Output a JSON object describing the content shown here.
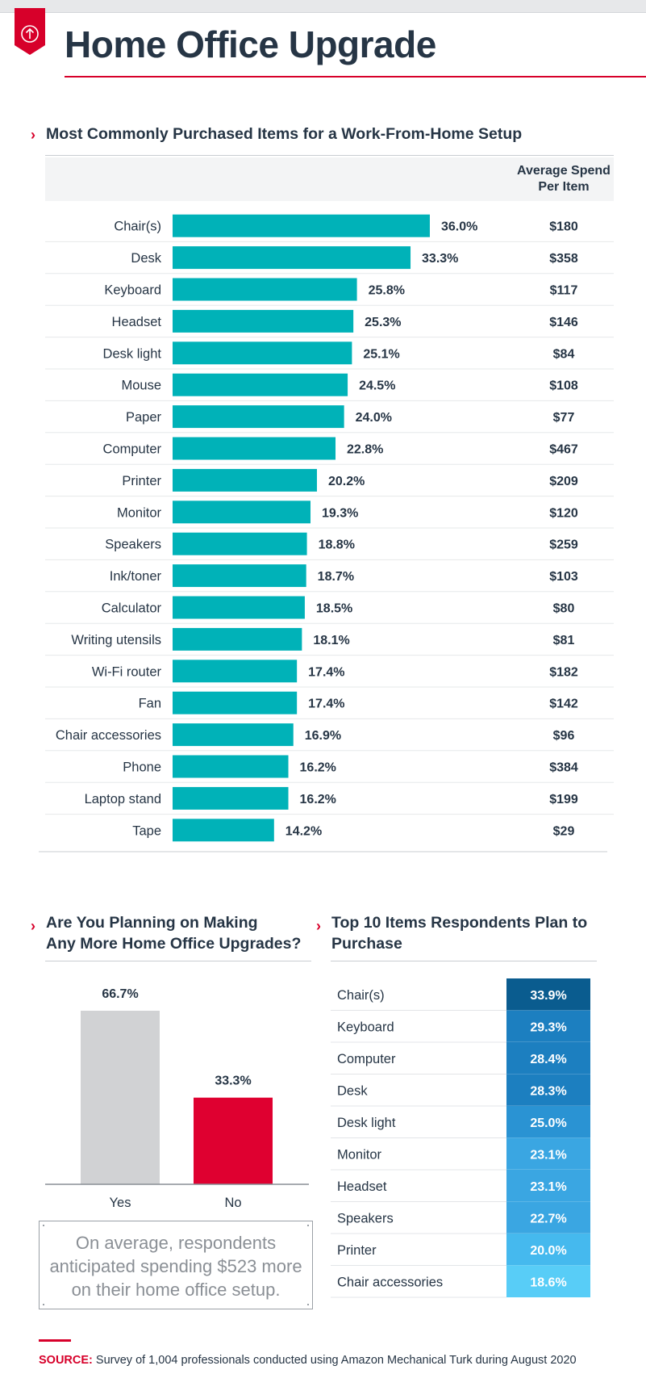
{
  "header": {
    "title": "Home Office Upgrade",
    "badge_icon": "up-arrow-circle-icon",
    "accent": "#d7002a"
  },
  "source": {
    "label": "SOURCE:",
    "text": "Survey of 1,004 professionals conducted using Amazon Mechanical Turk during August 2020"
  },
  "callout": {
    "text": "On average, respondents anticipated spending $523 more on their home office setup."
  },
  "chart_data": [
    {
      "type": "bar",
      "orientation": "horizontal",
      "title": "Most Commonly Purchased Items for a Work-From-Home Setup",
      "value_unit": "%",
      "bar_color": "#00b2b8",
      "table_column_header": "Average Spend Per Item",
      "xlim": [
        0,
        100
      ],
      "categories": [
        "Chair(s)",
        "Desk",
        "Keyboard",
        "Headset",
        "Desk light",
        "Mouse",
        "Paper",
        "Computer",
        "Printer",
        "Monitor",
        "Speakers",
        "Ink/toner",
        "Calculator",
        "Writing utensils",
        "Wi-Fi router",
        "Fan",
        "Chair accessories",
        "Phone",
        "Laptop stand",
        "Tape"
      ],
      "values": [
        36.0,
        33.3,
        25.8,
        25.3,
        25.1,
        24.5,
        24.0,
        22.8,
        20.2,
        19.3,
        18.8,
        18.7,
        18.5,
        18.1,
        17.4,
        17.4,
        16.9,
        16.2,
        16.2,
        14.2
      ],
      "value_labels": [
        "36.0%",
        "33.3%",
        "25.8%",
        "25.3%",
        "25.1%",
        "24.5%",
        "24.0%",
        "22.8%",
        "20.2%",
        "19.3%",
        "18.8%",
        "18.7%",
        "18.5%",
        "18.1%",
        "17.4%",
        "17.4%",
        "16.9%",
        "16.2%",
        "16.2%",
        "14.2%"
      ],
      "avg_spend": [
        "$180",
        "$358",
        "$117",
        "$146",
        "$84",
        "$108",
        "$77",
        "$467",
        "$209",
        "$120",
        "$259",
        "$103",
        "$80",
        "$81",
        "$182",
        "$142",
        "$96",
        "$384",
        "$199",
        "$29"
      ]
    },
    {
      "type": "bar",
      "orientation": "vertical",
      "title": "Are You Planning on Making Any More Home Office Upgrades?",
      "title_lines": [
        "Are You Planning on Making",
        "Any More Home Office Upgrades?"
      ],
      "categories": [
        "Yes",
        "No"
      ],
      "values": [
        66.7,
        33.3
      ],
      "value_labels": [
        "66.7%",
        "33.3%"
      ],
      "colors": [
        "#d1d2d4",
        "#df0030"
      ],
      "ylim": [
        0,
        66.7
      ]
    },
    {
      "type": "table",
      "title": "Top 10 Items Respondents Plan to Purchase",
      "title_lines": [
        "Top 10 Items Respondents Plan to",
        "Purchase"
      ],
      "categories": [
        "Chair(s)",
        "Keyboard",
        "Computer",
        "Desk",
        "Desk light",
        "Monitor",
        "Headset",
        "Speakers",
        "Printer",
        "Chair accessories"
      ],
      "values": [
        33.9,
        29.3,
        28.4,
        28.3,
        25.0,
        23.1,
        23.1,
        22.7,
        20.0,
        18.6
      ],
      "value_labels": [
        "33.9%",
        "29.3%",
        "28.4%",
        "28.3%",
        "25.0%",
        "23.1%",
        "23.1%",
        "22.7%",
        "20.0%",
        "18.6%"
      ],
      "cell_colors": [
        "#0a5c8f",
        "#1c7fc0",
        "#1c7fc0",
        "#1c7fc0",
        "#2a93d3",
        "#3aa6e2",
        "#3aa6e2",
        "#3aa6e2",
        "#45b9ee",
        "#58cdf7"
      ]
    }
  ]
}
